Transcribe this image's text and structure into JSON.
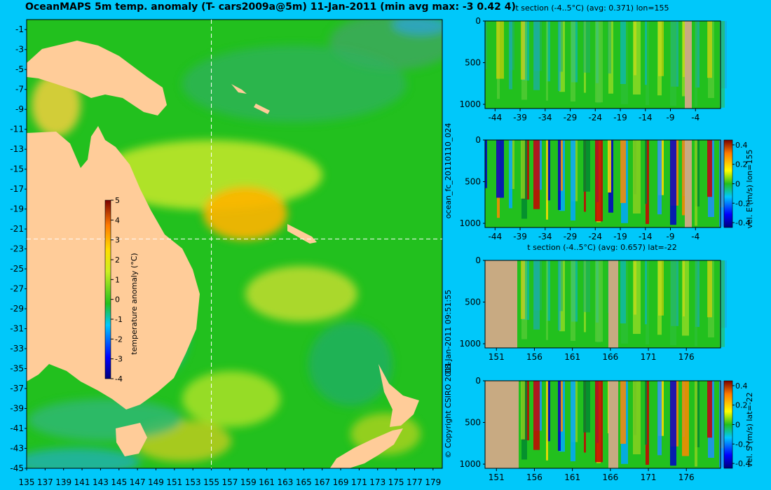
{
  "title": "OceanMAPS 5m temp. anomaly (T- cars2009a@5m) 11-Jan-2011 (min avg max: -3 0.42 4)",
  "colors": {
    "background": "#00c8fa",
    "land": "#ffcc99",
    "section_land": "#c8aa82",
    "ocean_base": "#22c01e"
  },
  "map": {
    "lat_ticks": [
      "-1",
      "-3",
      "-5",
      "-7",
      "-9",
      "-11",
      "-13",
      "-15",
      "-17",
      "-19",
      "-21",
      "-23",
      "-25",
      "-27",
      "-29",
      "-31",
      "-33",
      "-35",
      "-37",
      "-39",
      "-41",
      "-43",
      "-45"
    ],
    "lon_ticks": [
      "135",
      "137",
      "139",
      "141",
      "143",
      "145",
      "147",
      "149",
      "151",
      "153",
      "155",
      "157",
      "159",
      "161",
      "163",
      "165",
      "167",
      "169",
      "171",
      "173",
      "175",
      "177",
      "179"
    ],
    "colorbar": {
      "label": "temperature anomaly (°C)",
      "ticks": [
        "5",
        "4",
        "3",
        "2",
        "1",
        "0",
        "-1",
        "-2",
        "-3",
        "-4"
      ]
    },
    "guide_lon": "155",
    "guide_lat": "-22"
  },
  "vertical_labels": {
    "run_id": "ocean_fc_20110110_024",
    "timestamp": "18-Jan-2011 09:51:55",
    "copyright": "© Copyright CSIRO 2011"
  },
  "panels": [
    {
      "title": "t section (-4..5°C) (avg: 0.371) lon=155",
      "y_ticks": [
        "0",
        "500",
        "1000"
      ],
      "x_ticks": [
        "-44",
        "-39",
        "-34",
        "-29",
        "-24",
        "-19",
        "-14",
        "-9",
        "-4"
      ],
      "colorbar": null
    },
    {
      "title": "",
      "y_ticks": [
        "0",
        "500",
        "1000"
      ],
      "x_ticks": [
        "-44",
        "-39",
        "-34",
        "-29",
        "-24",
        "-19",
        "-14",
        "-9",
        "-4"
      ],
      "colorbar": {
        "label": "vel. E (m/s) lon=155",
        "ticks": [
          "0.4",
          "0.2",
          "0",
          "-0.2",
          "-0.4"
        ]
      }
    },
    {
      "title": "t section (-4..5°C) (avg: 0.657) lat=-22",
      "y_ticks": [
        "0",
        "500",
        "1000"
      ],
      "x_ticks": [
        "151",
        "156",
        "161",
        "166",
        "171",
        "176"
      ],
      "colorbar": null
    },
    {
      "title": "",
      "y_ticks": [
        "0",
        "500",
        "1000"
      ],
      "x_ticks": [
        "151",
        "156",
        "161",
        "166",
        "171",
        "176"
      ],
      "colorbar": {
        "label": "vel. S (m/s) lat=-22",
        "ticks": [
          "0.4",
          "0.2",
          "0",
          "-0.2",
          "-0.4"
        ]
      }
    }
  ],
  "chart_data": [
    {
      "type": "heatmap",
      "title": "OceanMAPS 5m temp. anomaly (T- cars2009a@5m) 11-Jan-2011 (min avg max: -3 0.42 4)",
      "x_ticks": [
        135,
        137,
        139,
        141,
        143,
        145,
        147,
        149,
        151,
        153,
        155,
        157,
        159,
        161,
        163,
        165,
        167,
        169,
        171,
        173,
        175,
        177,
        179
      ],
      "y_ticks": [
        -1,
        -3,
        -5,
        -7,
        -9,
        -11,
        -13,
        -15,
        -17,
        -19,
        -21,
        -23,
        -25,
        -27,
        -29,
        -31,
        -33,
        -35,
        -37,
        -39,
        -41,
        -43,
        -45
      ],
      "xlim": [
        135,
        180
      ],
      "ylim": [
        -45,
        0
      ],
      "colorbar_label": "temperature anomaly (°C)",
      "colorbar_range": [
        -4,
        5
      ],
      "summary": {
        "min": -3,
        "avg": 0.42,
        "max": 4
      }
    },
    {
      "type": "heatmap",
      "title": "t section (-4..5°C) (avg: 0.371) lon=155",
      "x_ticks": [
        -44,
        -39,
        -34,
        -29,
        -24,
        -19,
        -14,
        -9,
        -4
      ],
      "y_ticks": [
        0,
        500,
        1000
      ],
      "colorbar_range": [
        -4,
        5
      ],
      "avg": 0.371
    },
    {
      "type": "heatmap",
      "x_ticks": [
        -44,
        -39,
        -34,
        -29,
        -24,
        -19,
        -14,
        -9,
        -4
      ],
      "y_ticks": [
        0,
        500,
        1000
      ],
      "colorbar_label": "vel. E (m/s) lon=155",
      "colorbar_range": [
        -0.4,
        0.4
      ]
    },
    {
      "type": "heatmap",
      "title": "t section (-4..5°C) (avg: 0.657) lat=-22",
      "x_ticks": [
        151,
        156,
        161,
        166,
        171,
        176
      ],
      "y_ticks": [
        0,
        500,
        1000
      ],
      "colorbar_range": [
        -4,
        5
      ],
      "avg": 0.657
    },
    {
      "type": "heatmap",
      "x_ticks": [
        151,
        156,
        161,
        166,
        171,
        176
      ],
      "y_ticks": [
        0,
        500,
        1000
      ],
      "colorbar_label": "vel. S (m/s) lat=-22",
      "colorbar_range": [
        -0.4,
        0.4
      ]
    }
  ]
}
